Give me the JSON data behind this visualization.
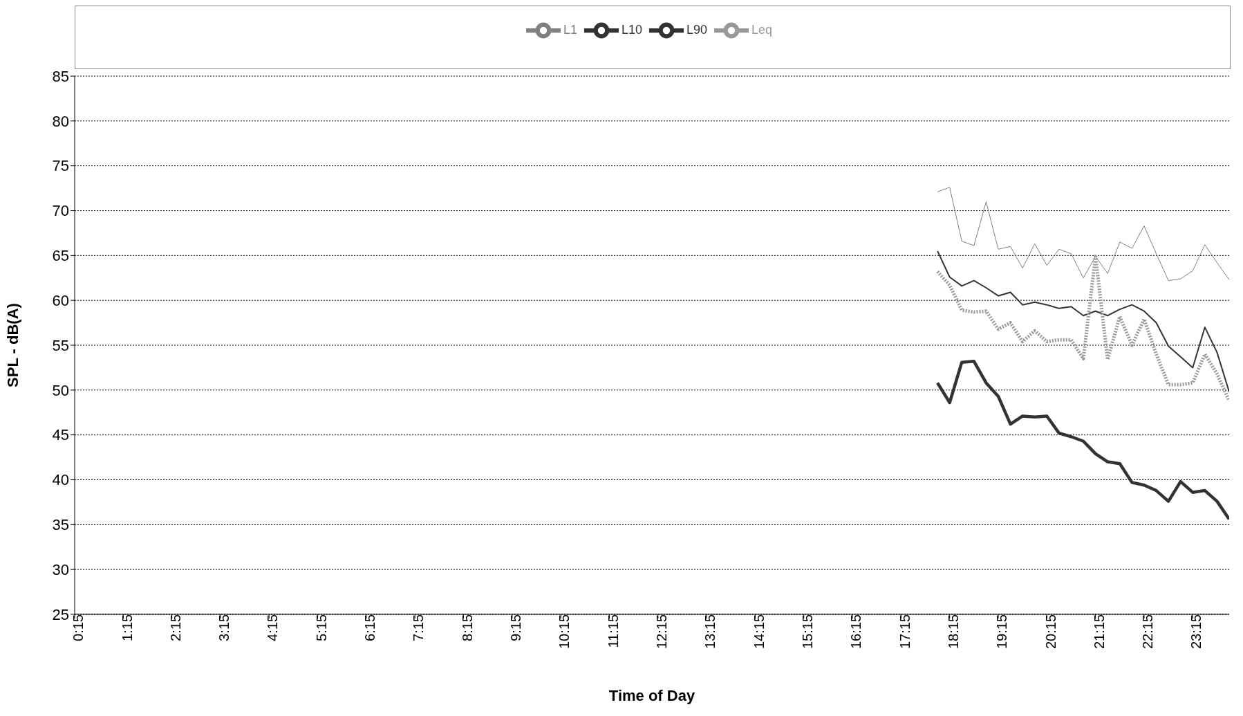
{
  "chart_data": {
    "type": "line",
    "xlabel": "Time of Day",
    "ylabel": "SPL - dB(A)",
    "categories": [
      "0:15",
      null,
      null,
      null,
      "1:15",
      null,
      null,
      null,
      "2:15",
      null,
      null,
      null,
      "3:15",
      null,
      null,
      null,
      "4:15",
      null,
      null,
      null,
      "5:15",
      null,
      null,
      null,
      "6:15",
      null,
      null,
      null,
      "7:15",
      null,
      null,
      null,
      "8:15",
      null,
      null,
      null,
      "9:15",
      null,
      null,
      null,
      "10:15",
      null,
      null,
      null,
      "11:15",
      null,
      null,
      null,
      "12:15",
      null,
      null,
      null,
      "13:15",
      null,
      null,
      null,
      "14:15",
      null,
      null,
      null,
      "15:15",
      null,
      null,
      null,
      "16:15",
      null,
      null,
      null,
      "17:15",
      null,
      null,
      null,
      "18:15",
      null,
      null,
      null,
      "19:15",
      null,
      null,
      null,
      "20:15",
      null,
      null,
      null,
      "21:15",
      null,
      null,
      null,
      "22:15",
      null,
      null,
      null,
      "23:15",
      null,
      null,
      null
    ],
    "series": [
      {
        "name": "L1",
        "color": "#808080",
        "values": [
          null,
          null,
          null,
          null,
          null,
          null,
          null,
          null,
          null,
          null,
          null,
          null,
          null,
          null,
          null,
          null,
          null,
          null,
          null,
          null,
          null,
          null,
          null,
          null,
          null,
          null,
          null,
          null,
          null,
          null,
          null,
          null,
          null,
          null,
          null,
          null,
          null,
          null,
          null,
          null,
          null,
          null,
          null,
          null,
          null,
          null,
          null,
          null,
          null,
          null,
          null,
          null,
          null,
          null,
          null,
          null,
          null,
          null,
          null,
          null,
          null,
          null,
          null,
          null,
          null,
          null,
          null,
          null,
          null,
          null,
          null,
          72.1,
          72.6,
          66.6,
          66.1,
          71.0,
          65.7,
          66.0,
          63.6,
          66.3,
          63.9,
          65.7,
          65.2,
          62.5,
          64.9,
          63.0,
          66.5,
          65.8,
          68.3,
          65.2,
          62.2,
          62.4,
          63.3,
          66.2,
          64.2,
          62.3
        ]
      },
      {
        "name": "L10",
        "color": "#333333",
        "values": [
          null,
          null,
          null,
          null,
          null,
          null,
          null,
          null,
          null,
          null,
          null,
          null,
          null,
          null,
          null,
          null,
          null,
          null,
          null,
          null,
          null,
          null,
          null,
          null,
          null,
          null,
          null,
          null,
          null,
          null,
          null,
          null,
          null,
          null,
          null,
          null,
          null,
          null,
          null,
          null,
          null,
          null,
          null,
          null,
          null,
          null,
          null,
          null,
          null,
          null,
          null,
          null,
          null,
          null,
          null,
          null,
          null,
          null,
          null,
          null,
          null,
          null,
          null,
          null,
          null,
          null,
          null,
          null,
          null,
          null,
          null,
          65.5,
          62.6,
          61.6,
          62.2,
          61.4,
          60.5,
          60.9,
          59.5,
          59.8,
          59.5,
          59.1,
          59.3,
          58.3,
          58.8,
          58.3,
          59.0,
          59.5,
          58.8,
          57.5,
          54.9,
          53.7,
          52.5,
          57.0,
          54.2,
          49.8
        ]
      },
      {
        "name": "L90",
        "color": "#333333",
        "values": [
          null,
          null,
          null,
          null,
          null,
          null,
          null,
          null,
          null,
          null,
          null,
          null,
          null,
          null,
          null,
          null,
          null,
          null,
          null,
          null,
          null,
          null,
          null,
          null,
          null,
          null,
          null,
          null,
          null,
          null,
          null,
          null,
          null,
          null,
          null,
          null,
          null,
          null,
          null,
          null,
          null,
          null,
          null,
          null,
          null,
          null,
          null,
          null,
          null,
          null,
          null,
          null,
          null,
          null,
          null,
          null,
          null,
          null,
          null,
          null,
          null,
          null,
          null,
          null,
          null,
          null,
          null,
          null,
          null,
          null,
          null,
          50.8,
          48.6,
          53.1,
          53.2,
          50.8,
          49.3,
          46.2,
          47.1,
          47.0,
          47.1,
          45.2,
          44.8,
          44.3,
          42.9,
          42.0,
          41.8,
          39.7,
          39.4,
          38.8,
          37.6,
          39.8,
          38.6,
          38.8,
          37.6,
          35.6
        ]
      },
      {
        "name": "Leq",
        "color": "#999999",
        "line_style": "dotted",
        "values": [
          null,
          null,
          null,
          null,
          null,
          null,
          null,
          null,
          null,
          null,
          null,
          null,
          null,
          null,
          null,
          null,
          null,
          null,
          null,
          null,
          null,
          null,
          null,
          null,
          null,
          null,
          null,
          null,
          null,
          null,
          null,
          null,
          null,
          null,
          null,
          null,
          null,
          null,
          null,
          null,
          null,
          null,
          null,
          null,
          null,
          null,
          null,
          null,
          null,
          null,
          null,
          null,
          null,
          null,
          null,
          null,
          null,
          null,
          null,
          null,
          null,
          null,
          null,
          null,
          null,
          null,
          null,
          null,
          null,
          null,
          null,
          63.2,
          61.7,
          58.9,
          58.7,
          58.8,
          56.8,
          57.5,
          55.4,
          56.6,
          55.4,
          55.6,
          55.6,
          53.5,
          64.9,
          53.4,
          58.2,
          55.0,
          57.9,
          54.0,
          50.6,
          50.6,
          50.8,
          54.0,
          51.8,
          48.8
        ]
      }
    ],
    "ylim": [
      25,
      85
    ],
    "yticks": [
      25,
      30,
      35,
      40,
      45,
      50,
      55,
      60,
      65,
      70,
      75,
      80,
      85
    ],
    "grid": "y",
    "legend": "top",
    "marker": "none",
    "line_style": "solid"
  }
}
